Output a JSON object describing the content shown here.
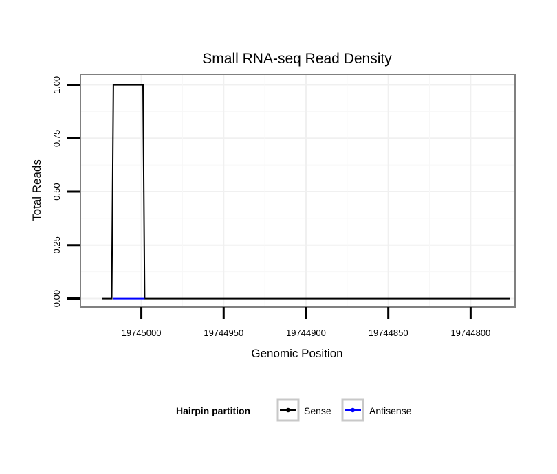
{
  "chart_data": {
    "type": "line",
    "title": "Small RNA-seq Read Density",
    "xlabel": "Genomic Position",
    "ylabel": "Total Reads",
    "x_reversed": true,
    "xlim": [
      19745037,
      19744773
    ],
    "ylim": [
      -0.04,
      1.05
    ],
    "x_ticks": [
      19745000,
      19744950,
      19744900,
      19744850,
      19744800
    ],
    "x_tick_labels": [
      "19745000",
      "19744950",
      "19744900",
      "19744850",
      "19744800"
    ],
    "y_ticks": [
      0,
      0.25,
      0.5,
      0.75,
      1.0
    ],
    "y_tick_labels": [
      "0.00",
      "0.25",
      "0.50",
      "0.75",
      "1.00"
    ],
    "grid": true,
    "legend": {
      "title": "Hairpin partition",
      "position": "bottom",
      "entries": [
        {
          "label": "Sense",
          "color": "#000000"
        },
        {
          "label": "Antisense",
          "color": "#0000ff"
        }
      ]
    },
    "series": [
      {
        "name": "Sense",
        "color": "#000000",
        "x": [
          19745024,
          19745018,
          19745017,
          19744999,
          19744998,
          19744994,
          19744776
        ],
        "y": [
          0,
          0,
          1,
          1,
          0,
          0,
          0
        ]
      },
      {
        "name": "Antisense",
        "color": "#0000ff",
        "x": [
          19745017,
          19744998
        ],
        "y": [
          0,
          0
        ]
      }
    ]
  }
}
